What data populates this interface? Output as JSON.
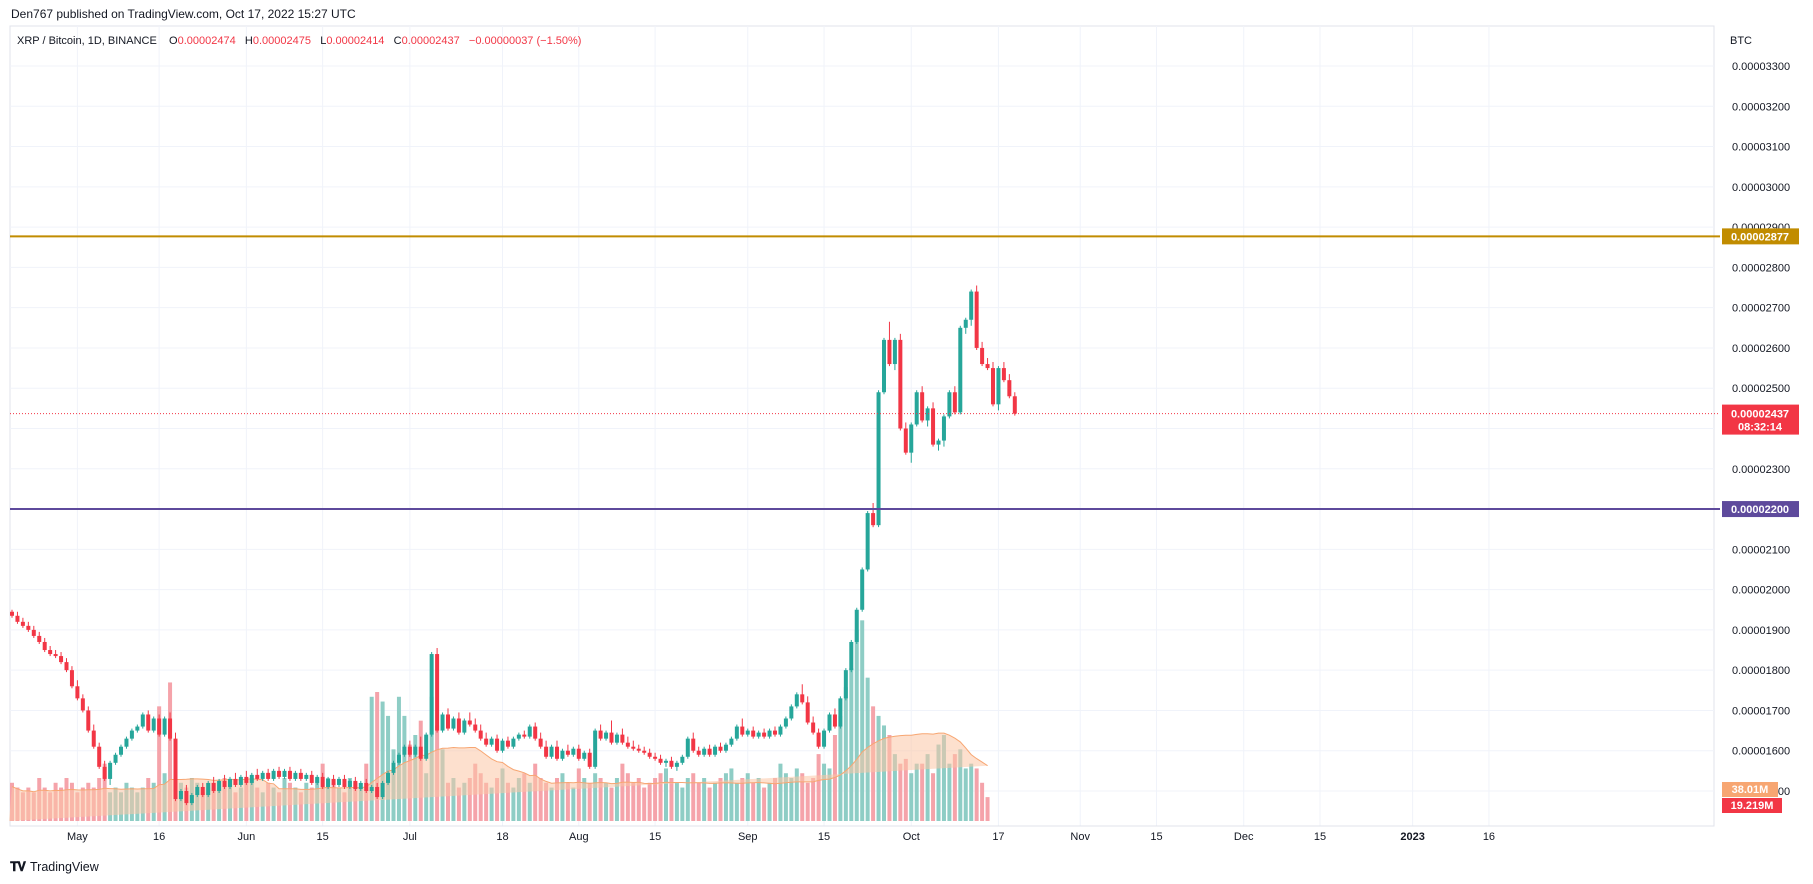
{
  "header": {
    "published": "Den767 published on TradingView.com, Oct 17, 2022 15:27 UTC",
    "symbol": "XRP / Bitcoin, 1D, BINANCE",
    "o_label": "O",
    "o_value": "0.00002474",
    "h_label": "H",
    "h_value": "0.00002475",
    "l_label": "L",
    "l_value": "0.00002414",
    "c_label": "C",
    "c_value": "0.00002437",
    "change": "−0.00000037 (−1.50%)"
  },
  "footer": {
    "brand": "TradingView"
  },
  "colors": {
    "up": "#26a69a",
    "down": "#f23645",
    "up_volume": "#8ecdc5",
    "down_volume": "#f5a3aa",
    "resistance": "#c18c00",
    "support": "#5e4a9c",
    "last_price_line": "#f23645",
    "volume_ma_fill": "#fcc7a5",
    "volume_ma_line": "#f7a672"
  },
  "chart_data": {
    "type": "candlestick",
    "currency": "BTC",
    "y_range": [
      1.44e-05,
      3.42e-05
    ],
    "y_ticks": [
      "0.00003300",
      "0.00003200",
      "0.00003100",
      "0.00003000",
      "0.00002900",
      "0.00002800",
      "0.00002700",
      "0.00002600",
      "0.00002500",
      "0.00002400",
      "0.00002300",
      "0.00002200",
      "0.00002100",
      "0.00002000",
      "0.00001900",
      "0.00001800",
      "0.00001700",
      "0.00001600",
      "0.00001500"
    ],
    "x_ticks": [
      "May",
      "16",
      "Jun",
      "15",
      "Jul",
      "18",
      "Aug",
      "15",
      "Sep",
      "15",
      "Oct",
      "17",
      "Nov",
      "15",
      "Dec",
      "15",
      "2023",
      "16"
    ],
    "horizontal_lines": [
      {
        "name": "resistance",
        "price": 2.877e-05,
        "label": "0.00002877"
      },
      {
        "name": "support",
        "price": 2.2e-05,
        "label": "0.00002200"
      }
    ],
    "last_price": {
      "price": 2.437e-05,
      "label": "0.00002437",
      "countdown": "08:32:14"
    },
    "volume_labels": {
      "volume_ma": "38.01M",
      "volume": "19.219M"
    },
    "start_date": "2022-04-19",
    "candles": [
      [
        19.45,
        19.35,
        19.4
      ],
      [
        19.35,
        19.2,
        19.4
      ],
      [
        19.2,
        19.1,
        19.25
      ],
      [
        19.1,
        19.0,
        19.15
      ],
      [
        19.0,
        18.85,
        19.05
      ],
      [
        18.85,
        18.7,
        18.9
      ],
      [
        18.7,
        18.5,
        18.75
      ],
      [
        18.5,
        18.4,
        18.55
      ],
      [
        18.4,
        18.35,
        18.45
      ],
      [
        18.35,
        18.2,
        18.4
      ],
      [
        18.2,
        18.0,
        18.25
      ],
      [
        18.0,
        17.6,
        18.05
      ],
      [
        17.6,
        17.3,
        17.7
      ],
      [
        17.3,
        17.0,
        17.35
      ],
      [
        17.0,
        16.5,
        17.05
      ],
      [
        16.5,
        16.1,
        16.6
      ],
      [
        16.1,
        15.6,
        16.15
      ],
      [
        15.6,
        15.3,
        15.7
      ],
      [
        15.3,
        15.7,
        15.2
      ],
      [
        15.7,
        15.9,
        15.8
      ],
      [
        15.9,
        16.1,
        16.0
      ],
      [
        16.1,
        16.3,
        16.2
      ],
      [
        16.3,
        16.5,
        16.4
      ],
      [
        16.5,
        16.6,
        16.55
      ],
      [
        16.6,
        16.9,
        16.8
      ],
      [
        16.9,
        16.5,
        16.95
      ],
      [
        16.5,
        16.8,
        16.6
      ],
      [
        16.8,
        16.4,
        16.85
      ],
      [
        16.4,
        16.8,
        16.5
      ],
      [
        16.8,
        16.3,
        16.9
      ],
      [
        16.3,
        14.8,
        16.4
      ],
      [
        14.8,
        15.0,
        14.9
      ],
      [
        15.0,
        14.7,
        15.1
      ],
      [
        14.7,
        14.9,
        14.75
      ],
      [
        14.9,
        15.1,
        15.0
      ],
      [
        15.1,
        14.9,
        15.15
      ],
      [
        14.9,
        15.2,
        15.0
      ],
      [
        15.2,
        15.0,
        15.3
      ],
      [
        15.0,
        15.25,
        15.1
      ],
      [
        15.25,
        15.1,
        15.35
      ],
      [
        15.1,
        15.3,
        15.15
      ],
      [
        15.3,
        15.15,
        15.4
      ],
      [
        15.15,
        15.35,
        15.2
      ],
      [
        15.35,
        15.2,
        15.45
      ],
      [
        15.2,
        15.4,
        15.25
      ],
      [
        15.4,
        15.3,
        15.5
      ],
      [
        15.3,
        15.45,
        15.35
      ],
      [
        15.45,
        15.3,
        15.5
      ],
      [
        15.3,
        15.5,
        15.35
      ],
      [
        15.5,
        15.35,
        15.55
      ],
      [
        15.35,
        15.5,
        15.4
      ],
      [
        15.5,
        15.3,
        15.55
      ],
      [
        15.3,
        15.45,
        15.35
      ],
      [
        15.45,
        15.3,
        15.5
      ],
      [
        15.3,
        15.4,
        15.35
      ],
      [
        15.4,
        15.2,
        15.45
      ],
      [
        15.2,
        15.35,
        15.25
      ],
      [
        15.35,
        15.1,
        15.4
      ],
      [
        15.1,
        15.3,
        15.15
      ],
      [
        15.3,
        15.15,
        15.35
      ],
      [
        15.15,
        15.3,
        15.2
      ],
      [
        15.3,
        15.1,
        15.35
      ],
      [
        15.1,
        15.25,
        15.15
      ],
      [
        15.25,
        15.05,
        15.3
      ],
      [
        15.05,
        15.2,
        15.1
      ],
      [
        15.2,
        15.0,
        15.25
      ],
      [
        15.0,
        15.1,
        15.05
      ],
      [
        15.1,
        14.85,
        15.15
      ],
      [
        14.85,
        15.2,
        14.9
      ],
      [
        15.2,
        15.45,
        15.3
      ],
      [
        15.45,
        15.7,
        15.6
      ],
      [
        15.7,
        15.9,
        15.8
      ],
      [
        15.9,
        16.1,
        16.0
      ],
      [
        16.1,
        15.9,
        16.2
      ],
      [
        15.9,
        16.1,
        16.0
      ],
      [
        16.1,
        15.8,
        16.3
      ],
      [
        15.8,
        16.4,
        15.9
      ],
      [
        16.4,
        18.4,
        16.5
      ],
      [
        18.4,
        16.5,
        18.5
      ],
      [
        16.5,
        16.9,
        16.6
      ],
      [
        16.9,
        16.55,
        17.0
      ],
      [
        16.55,
        16.8,
        16.6
      ],
      [
        16.8,
        16.45,
        16.9
      ],
      [
        16.45,
        16.75,
        16.55
      ],
      [
        16.75,
        16.65,
        16.9
      ],
      [
        16.65,
        16.5,
        16.75
      ],
      [
        16.5,
        16.3,
        16.6
      ],
      [
        16.3,
        16.15,
        16.4
      ],
      [
        16.15,
        16.3,
        16.2
      ],
      [
        16.3,
        16.0,
        16.35
      ],
      [
        16.0,
        16.25,
        16.1
      ],
      [
        16.25,
        16.1,
        16.3
      ],
      [
        16.1,
        16.3,
        16.15
      ],
      [
        16.3,
        16.4,
        16.35
      ],
      [
        16.4,
        16.35,
        16.45
      ],
      [
        16.35,
        16.6,
        16.5
      ],
      [
        16.6,
        16.3,
        16.65
      ],
      [
        16.3,
        16.1,
        16.4
      ],
      [
        16.1,
        15.85,
        16.2
      ],
      [
        15.85,
        16.1,
        15.95
      ],
      [
        16.1,
        15.8,
        16.2
      ],
      [
        15.8,
        16.0,
        15.9
      ],
      [
        16.0,
        15.9,
        16.1
      ],
      [
        15.9,
        16.05,
        15.95
      ],
      [
        16.05,
        15.8,
        16.1
      ],
      [
        15.8,
        15.95,
        15.85
      ],
      [
        15.95,
        15.6,
        16.0
      ],
      [
        15.6,
        16.5,
        15.7
      ],
      [
        16.5,
        16.3,
        16.6
      ],
      [
        16.3,
        16.45,
        16.35
      ],
      [
        16.45,
        16.2,
        16.7
      ],
      [
        16.2,
        16.4,
        16.3
      ],
      [
        16.4,
        16.2,
        16.5
      ],
      [
        16.2,
        16.1,
        16.3
      ],
      [
        16.1,
        16.05,
        16.2
      ],
      [
        16.05,
        16.0,
        16.1
      ],
      [
        16.0,
        15.95,
        16.05
      ],
      [
        15.95,
        15.85,
        16.0
      ],
      [
        15.85,
        15.8,
        15.9
      ],
      [
        15.8,
        15.7,
        15.85
      ],
      [
        15.7,
        15.75,
        15.65
      ],
      [
        15.75,
        15.6,
        15.8
      ],
      [
        15.6,
        15.7,
        15.55
      ],
      [
        15.7,
        15.85,
        15.75
      ],
      [
        15.85,
        16.3,
        15.9
      ],
      [
        16.3,
        16.0,
        16.4
      ],
      [
        16.0,
        15.9,
        16.05
      ],
      [
        15.9,
        16.05,
        15.95
      ],
      [
        16.05,
        15.9,
        16.1
      ],
      [
        15.9,
        16.1,
        15.95
      ],
      [
        16.1,
        16.0,
        16.15
      ],
      [
        16.0,
        16.15,
        16.05
      ],
      [
        16.15,
        16.3,
        16.2
      ],
      [
        16.3,
        16.6,
        16.5
      ],
      [
        16.6,
        16.4,
        16.75
      ],
      [
        16.4,
        16.5,
        16.45
      ],
      [
        16.5,
        16.35,
        16.55
      ],
      [
        16.35,
        16.45,
        16.4
      ],
      [
        16.45,
        16.35,
        16.5
      ],
      [
        16.35,
        16.5,
        16.4
      ],
      [
        16.5,
        16.4,
        16.55
      ],
      [
        16.4,
        16.6,
        16.45
      ],
      [
        16.6,
        16.8,
        16.65
      ],
      [
        16.8,
        17.1,
        16.9
      ],
      [
        17.1,
        17.4,
        17.2
      ],
      [
        17.4,
        17.2,
        17.6
      ],
      [
        17.2,
        16.7,
        17.3
      ],
      [
        16.7,
        16.45,
        16.8
      ],
      [
        16.45,
        16.1,
        16.5
      ],
      [
        16.1,
        16.5,
        16.2
      ],
      [
        16.5,
        16.9,
        16.6
      ],
      [
        16.9,
        16.6,
        17.0
      ],
      [
        16.6,
        17.3,
        16.7
      ],
      [
        17.3,
        18.0,
        17.4
      ],
      [
        18.0,
        18.7,
        18.1
      ],
      [
        18.7,
        19.5,
        18.8
      ],
      [
        19.5,
        20.5,
        19.6
      ],
      [
        20.5,
        21.9,
        20.6
      ],
      [
        21.9,
        21.6,
        22.1
      ],
      [
        21.6,
        24.9,
        21.7
      ],
      [
        24.9,
        26.2,
        25.0
      ],
      [
        26.2,
        25.6,
        26.6
      ],
      [
        25.6,
        26.2,
        25.5
      ],
      [
        26.2,
        24.0,
        26.3
      ],
      [
        24.0,
        23.4,
        24.1
      ],
      [
        23.4,
        24.1,
        23.2
      ],
      [
        24.1,
        24.9,
        24.2
      ],
      [
        24.9,
        24.2,
        25.0
      ],
      [
        24.2,
        24.5,
        24.1
      ],
      [
        24.5,
        23.6,
        24.6
      ],
      [
        23.6,
        23.7,
        23.5
      ],
      [
        23.7,
        24.3,
        23.6
      ],
      [
        24.3,
        24.9,
        24.4
      ],
      [
        24.9,
        24.4,
        25.0
      ],
      [
        24.4,
        26.5,
        24.5
      ],
      [
        26.5,
        26.7,
        26.4
      ],
      [
        26.7,
        27.4,
        26.6
      ],
      [
        27.4,
        26.0,
        27.5
      ],
      [
        26.0,
        25.6,
        26.1
      ],
      [
        25.6,
        25.5,
        25.7
      ],
      [
        25.5,
        24.6,
        25.6
      ],
      [
        24.6,
        25.5,
        24.5
      ],
      [
        25.5,
        25.2,
        25.6
      ],
      [
        25.2,
        24.8,
        25.3
      ],
      [
        24.8,
        24.37,
        24.85
      ]
    ],
    "volumes": [
      8,
      7,
      6,
      7,
      6,
      9,
      7,
      6,
      8,
      7,
      9,
      8,
      6,
      7,
      8,
      7,
      9,
      12,
      6,
      7,
      6,
      8,
      7,
      6,
      7,
      9,
      8,
      24,
      10,
      29,
      9,
      8,
      7,
      9,
      8,
      6,
      7,
      8,
      7,
      9,
      8,
      6,
      7,
      8,
      9,
      7,
      6,
      8,
      7,
      6,
      9,
      8,
      7,
      6,
      8,
      7,
      9,
      12,
      9,
      8,
      7,
      6,
      9,
      8,
      7,
      12,
      26,
      27,
      25,
      22,
      15,
      26,
      22,
      16,
      18,
      21,
      10,
      26,
      20,
      15,
      8,
      9,
      7,
      8,
      9,
      12,
      10,
      8,
      7,
      9,
      11,
      8,
      7,
      9,
      10,
      8,
      12,
      9,
      8,
      7,
      9,
      10,
      8,
      7,
      11,
      9,
      8,
      10,
      9,
      8,
      7,
      9,
      12,
      10,
      8,
      9,
      7,
      8,
      9,
      10,
      11,
      9,
      8,
      7,
      9,
      10,
      8,
      9,
      7,
      8,
      9,
      10,
      11,
      8,
      9,
      10,
      8,
      9,
      7,
      8,
      9,
      12,
      10,
      9,
      11,
      10,
      8,
      9,
      14,
      12,
      11,
      18,
      22,
      28,
      32,
      40,
      42,
      30,
      24,
      22,
      20,
      18,
      14,
      12,
      13,
      10,
      12,
      12,
      14,
      10,
      16,
      18,
      12,
      14,
      15,
      11,
      12,
      11,
      8,
      5
    ]
  }
}
